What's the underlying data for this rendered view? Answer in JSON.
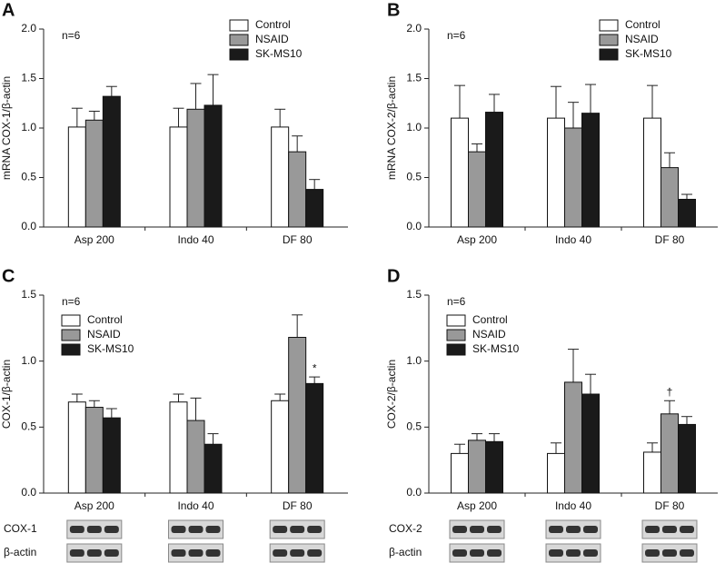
{
  "chart_data": [
    {
      "type": "bar",
      "panel": "A",
      "annotation": "n=6",
      "ylabel": "mRNA COX-1/β-actin",
      "legend": "upper right",
      "categories": [
        "Asp 200",
        "Indo 40",
        "DF 80"
      ],
      "ylim": [
        0,
        2
      ],
      "yticks": [
        {
          "value": 0,
          "label": "0.0"
        },
        0.5,
        {
          "value": 1,
          "label": "1.0"
        },
        1.5,
        {
          "value": 2,
          "label": "2.0"
        }
      ],
      "series": [
        {
          "name": "Control",
          "color": "#ffffff",
          "values": [
            1.01,
            1.01,
            1.01
          ],
          "errors": [
            0.19,
            0.19,
            0.18
          ]
        },
        {
          "name": "NSAID",
          "color": "#999999",
          "values": [
            1.08,
            1.19,
            0.76
          ],
          "errors": [
            0.09,
            0.26,
            0.16
          ]
        },
        {
          "name": "SK-MS10",
          "color": "#1a1a1a",
          "values": [
            1.32,
            1.23,
            0.38
          ],
          "errors": [
            0.1,
            0.31,
            0.1
          ]
        }
      ]
    },
    {
      "type": "bar",
      "panel": "B",
      "annotation": "n=6",
      "ylabel": "mRNA COX-2/β-actin",
      "legend": "upper right",
      "categories": [
        "Asp 200",
        "Indo 40",
        "DF 80"
      ],
      "ylim": [
        0,
        2
      ],
      "yticks": [
        {
          "value": 0,
          "label": "0.0"
        },
        0.5,
        {
          "value": 1,
          "label": "1.0"
        },
        1.5,
        {
          "value": 2,
          "label": "2.0"
        }
      ],
      "series": [
        {
          "name": "Control",
          "color": "#ffffff",
          "values": [
            1.1,
            1.1,
            1.1
          ],
          "errors": [
            0.33,
            0.32,
            0.33
          ]
        },
        {
          "name": "NSAID",
          "color": "#999999",
          "values": [
            0.76,
            1.0,
            0.6
          ],
          "errors": [
            0.08,
            0.26,
            0.15
          ]
        },
        {
          "name": "SK-MS10",
          "color": "#1a1a1a",
          "values": [
            1.16,
            1.15,
            0.28
          ],
          "errors": [
            0.18,
            0.29,
            0.05
          ]
        }
      ]
    },
    {
      "type": "bar",
      "panel": "C",
      "annotation": "n=6",
      "ylabel": "COX-1/β-actin",
      "legend": "upper left",
      "categories": [
        "Asp 200",
        "Indo 40",
        "DF 80"
      ],
      "ylim": [
        0,
        1.5
      ],
      "yticks": [
        {
          "value": 0,
          "label": "0.0"
        },
        0.5,
        {
          "value": 1,
          "label": "1.0"
        },
        1.5
      ],
      "series": [
        {
          "name": "Control",
          "color": "#ffffff",
          "values": [
            0.69,
            0.69,
            0.7
          ],
          "errors": [
            0.06,
            0.06,
            0.05
          ]
        },
        {
          "name": "NSAID",
          "color": "#999999",
          "values": [
            0.65,
            0.55,
            1.18
          ],
          "errors": [
            0.05,
            0.17,
            0.17
          ]
        },
        {
          "name": "SK-MS10",
          "color": "#1a1a1a",
          "values": [
            0.57,
            0.37,
            0.83
          ],
          "errors": [
            0.07,
            0.08,
            0.05
          ]
        }
      ],
      "marks": [
        {
          "text": "*",
          "category": "DF 80",
          "series": "SK-MS10"
        }
      ],
      "blot_labels": [
        "COX-1",
        "β-actin"
      ]
    },
    {
      "type": "bar",
      "panel": "D",
      "annotation": "n=6",
      "ylabel": "COX-2/β-actin",
      "legend": "upper left",
      "categories": [
        "Asp 200",
        "Indo 40",
        "DF 80"
      ],
      "ylim": [
        0,
        1.5
      ],
      "yticks": [
        {
          "value": 0,
          "label": "0.0"
        },
        0.5,
        {
          "value": 1,
          "label": "1.0"
        },
        1.5
      ],
      "series": [
        {
          "name": "Control",
          "color": "#ffffff",
          "values": [
            0.3,
            0.3,
            0.31
          ],
          "errors": [
            0.07,
            0.08,
            0.07
          ]
        },
        {
          "name": "NSAID",
          "color": "#999999",
          "values": [
            0.4,
            0.84,
            0.6
          ],
          "errors": [
            0.05,
            0.25,
            0.1
          ]
        },
        {
          "name": "SK-MS10",
          "color": "#1a1a1a",
          "values": [
            0.39,
            0.75,
            0.52
          ],
          "errors": [
            0.06,
            0.15,
            0.06
          ]
        }
      ],
      "marks": [
        {
          "text": "†",
          "category": "DF 80",
          "series": "NSAID"
        }
      ],
      "blot_labels": [
        "COX-2",
        "β-actin"
      ]
    }
  ]
}
